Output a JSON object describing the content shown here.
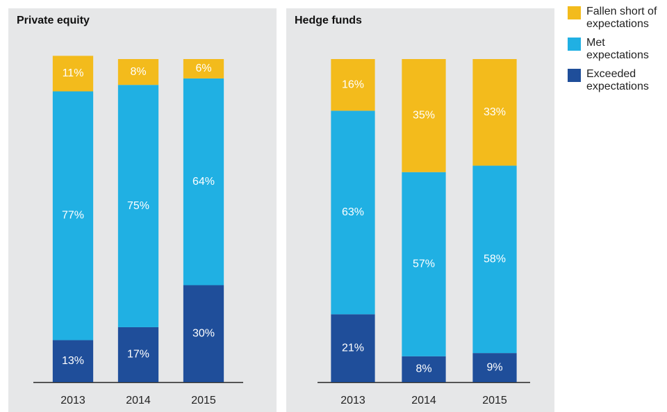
{
  "chart_data": [
    {
      "type": "bar",
      "stacked": true,
      "title": "Private equity",
      "categories": [
        "2013",
        "2014",
        "2015"
      ],
      "series": [
        {
          "name": "Fallen short of expectations",
          "color": "#f3bb1c",
          "values": [
            11,
            8,
            6
          ],
          "value_labels": [
            "11%",
            "8%",
            "6%"
          ]
        },
        {
          "name": "Met expectations",
          "color": "#20b0e3",
          "values": [
            77,
            75,
            64
          ],
          "value_labels": [
            "77%",
            "75%",
            "64%"
          ]
        },
        {
          "name": "Exceeded expectations",
          "color": "#1f4e9a",
          "values": [
            13,
            17,
            30
          ],
          "value_labels": [
            "13%",
            "17%",
            "30%"
          ]
        }
      ]
    },
    {
      "type": "bar",
      "stacked": true,
      "title": "Hedge funds",
      "categories": [
        "2013",
        "2014",
        "2015"
      ],
      "series": [
        {
          "values": [
            16,
            35,
            33
          ],
          "value_labels": [
            "16%",
            "35%",
            "33%"
          ]
        },
        {
          "values": [
            63,
            57,
            58
          ],
          "value_labels": [
            "63%",
            "57%",
            "58%"
          ]
        },
        {
          "values": [
            21,
            8,
            9
          ],
          "value_labels": [
            "21%",
            "8%",
            "9%"
          ]
        }
      ]
    }
  ]
}
